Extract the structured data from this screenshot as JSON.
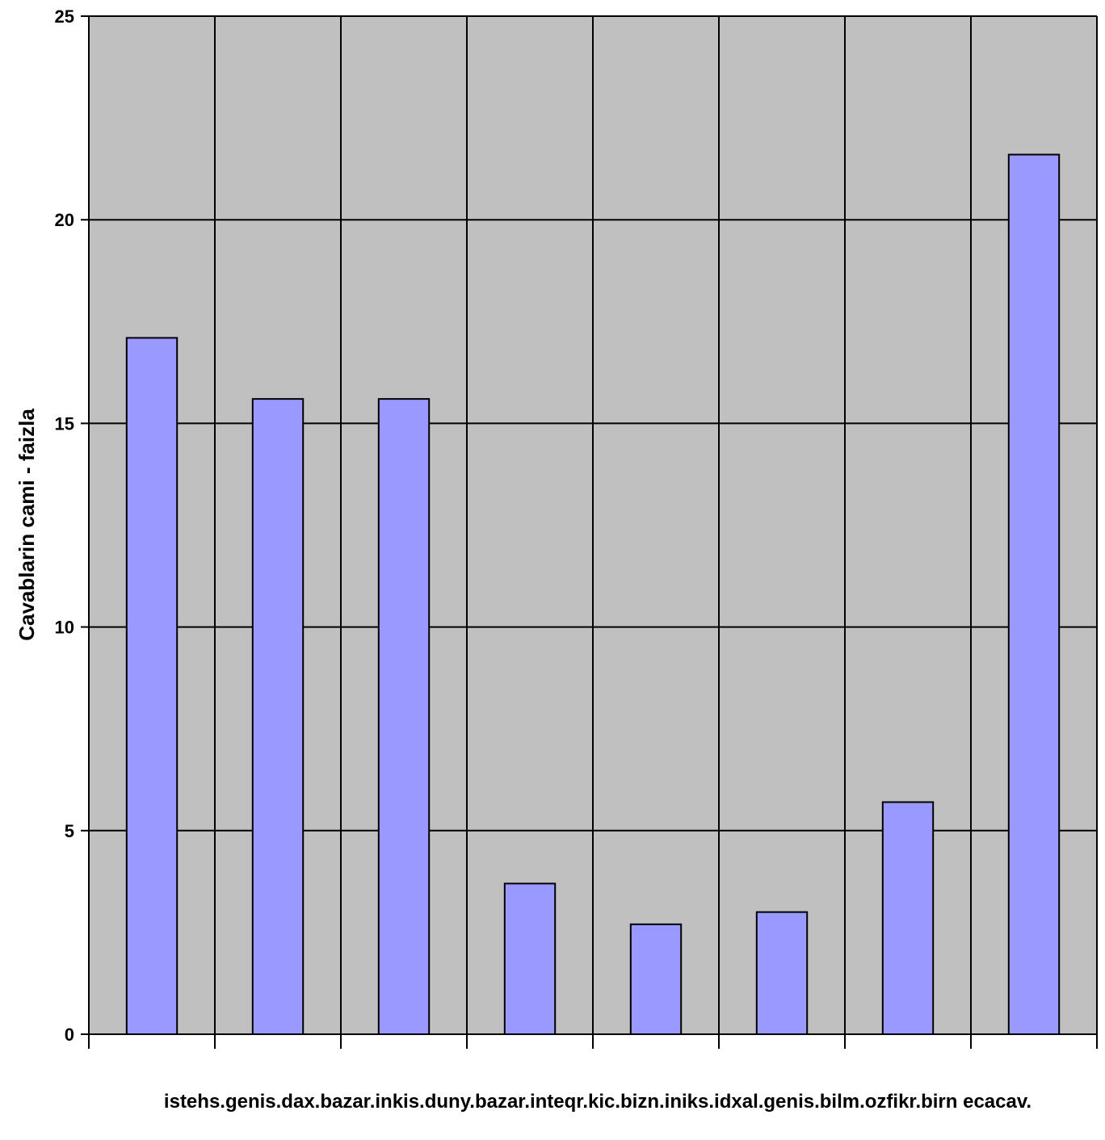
{
  "chart_data": {
    "type": "bar",
    "categories": [
      "",
      "",
      "",
      "",
      "",
      "",
      "",
      ""
    ],
    "values": [
      17.1,
      15.6,
      15.6,
      3.7,
      2.7,
      3.0,
      5.7,
      21.6
    ],
    "title": "",
    "xlabel": "istehs.genis.dax.bazar.inkis.duny.bazar.inteqr.kic.bizn.iniks.idxal.genis.bilm.ozfikr.birn ecacav.",
    "ylabel": "Cavablarin cami - faizla",
    "ylim": [
      0,
      25
    ],
    "yticks": [
      "0",
      "5",
      "10",
      "15",
      "20",
      "25"
    ],
    "grid": true,
    "colors": {
      "bar_fill": "#9999ff",
      "plot_bg": "#c0c0c0",
      "bar_stroke": "#000000"
    }
  }
}
